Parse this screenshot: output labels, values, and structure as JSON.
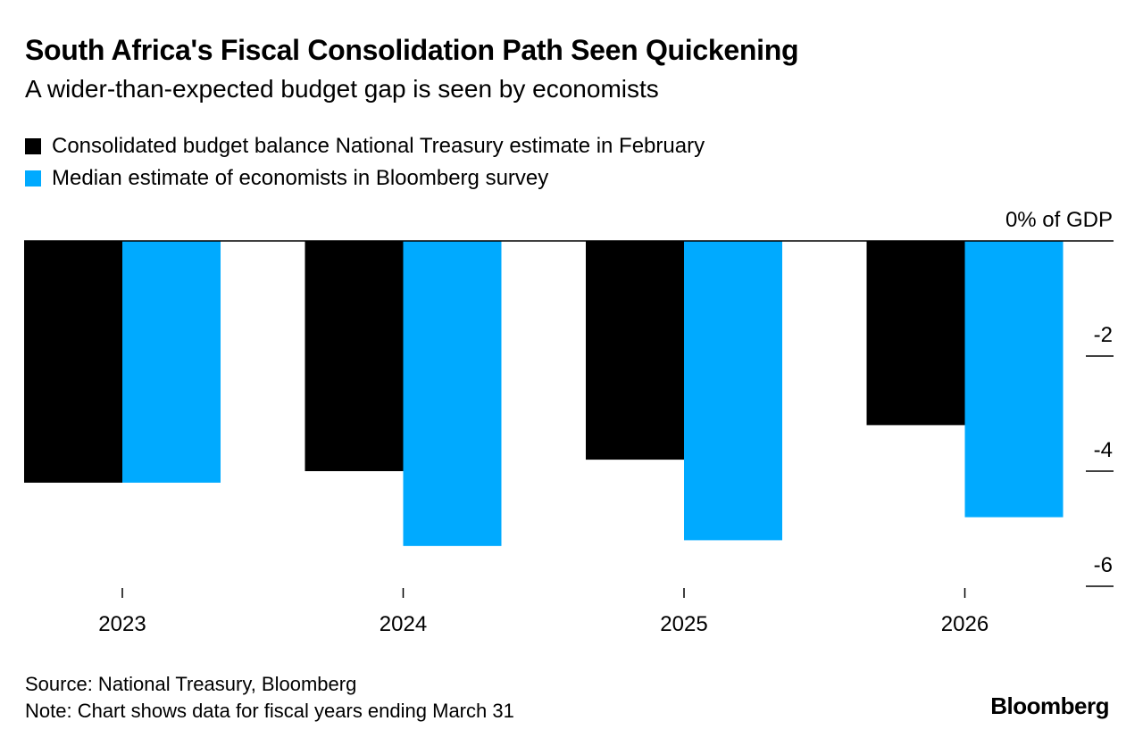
{
  "chart_data": {
    "type": "bar",
    "title": "South Africa's Fiscal Consolidation Path Seen Quickening",
    "subtitle": "A wider-than-expected budget gap is seen by economists",
    "categories": [
      "2023",
      "2024",
      "2025",
      "2026"
    ],
    "series": [
      {
        "name": "Consolidated budget balance National Treasury estimate in February",
        "color": "#000000",
        "values": [
          -4.2,
          -4.0,
          -3.8,
          -3.2
        ]
      },
      {
        "name": "Median estimate of economists in Bloomberg survey",
        "color": "#00AAFF",
        "values": [
          -4.2,
          -5.3,
          -5.2,
          -4.8
        ]
      }
    ],
    "ylabel": "",
    "y_unit_label": "0% of GDP",
    "y_ticks": [
      {
        "value": 0,
        "label": "0% of GDP"
      },
      {
        "value": -2,
        "label": "-2"
      },
      {
        "value": -4,
        "label": "-4"
      },
      {
        "value": -6,
        "label": "-6"
      }
    ],
    "ylim": [
      -6,
      0
    ],
    "legend_position": "top-left",
    "grid": false,
    "source": "Source: National Treasury, Bloomberg",
    "note": "Note: Chart shows data for fiscal years ending March 31",
    "branding": "Bloomberg"
  }
}
